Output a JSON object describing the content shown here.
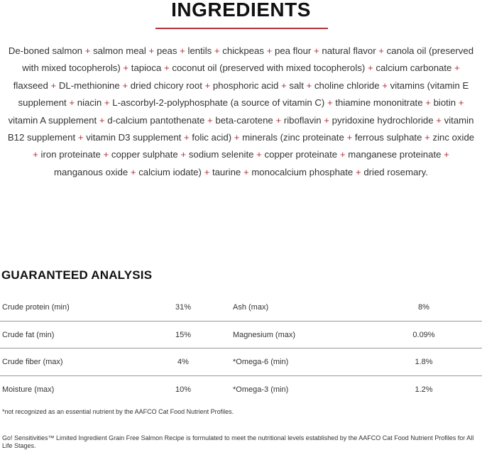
{
  "ingredients": {
    "title": "INGREDIENTS",
    "accent_color": "#b3323c",
    "items": [
      "De-boned salmon",
      "salmon meal",
      "peas",
      "lentils",
      "chickpeas",
      "pea flour",
      "natural flavor",
      "canola oil (preserved with mixed tocopherols)",
      "tapioca",
      "coconut oil (preserved with mixed tocopherols)",
      "calcium carbonate",
      "flaxseed",
      "DL-methionine",
      "dried chicory root",
      "phosphoric acid",
      "salt",
      "choline chloride",
      "vitamins (vitamin E supplement",
      "niacin",
      "L-ascorbyl-2-polyphosphate (a source of vitamin C)",
      "thiamine mononitrate",
      "biotin",
      "vitamin A supplement",
      "d-calcium pantothenate",
      "beta-carotene",
      "riboflavin",
      "pyridoxine hydrochloride",
      "vitamin B12 supplement",
      "vitamin D3 supplement",
      "folic acid)",
      "minerals (zinc proteinate",
      "ferrous sulphate",
      "zinc oxide",
      "iron proteinate",
      "copper sulphate",
      "sodium selenite",
      "copper proteinate",
      "manganese proteinate",
      "manganous oxide",
      "calcium iodate)",
      "taurine",
      "monocalcium phosphate",
      "dried rosemary."
    ],
    "separator": "+"
  },
  "analysis": {
    "title": "GUARANTEED ANALYSIS",
    "rows": [
      {
        "l1": "Crude protein (min)",
        "v1": "31%",
        "l2": "Ash (max)",
        "v2": "8%"
      },
      {
        "l1": "Crude fat (min)",
        "v1": "15%",
        "l2": "Magnesium (max)",
        "v2": "0.09%"
      },
      {
        "l1": "Crude fiber (max)",
        "v1": "4%",
        "l2": "*Omega-6 (min)",
        "v2": "1.8%"
      },
      {
        "l1": "Moisture (max)",
        "v1": "10%",
        "l2": "*Omega-3 (min)",
        "v2": "1.2%"
      }
    ]
  },
  "footnote": "*not recognized as an essential nutrient by the AAFCO Cat Food Nutrient Profiles.",
  "statement": "Go! Sensitivities™ Limited Ingredient Grain Free Salmon Recipe is formulated to meet the nutritional levels established by the AAFCO Cat Food Nutrient Profiles for All Life Stages."
}
